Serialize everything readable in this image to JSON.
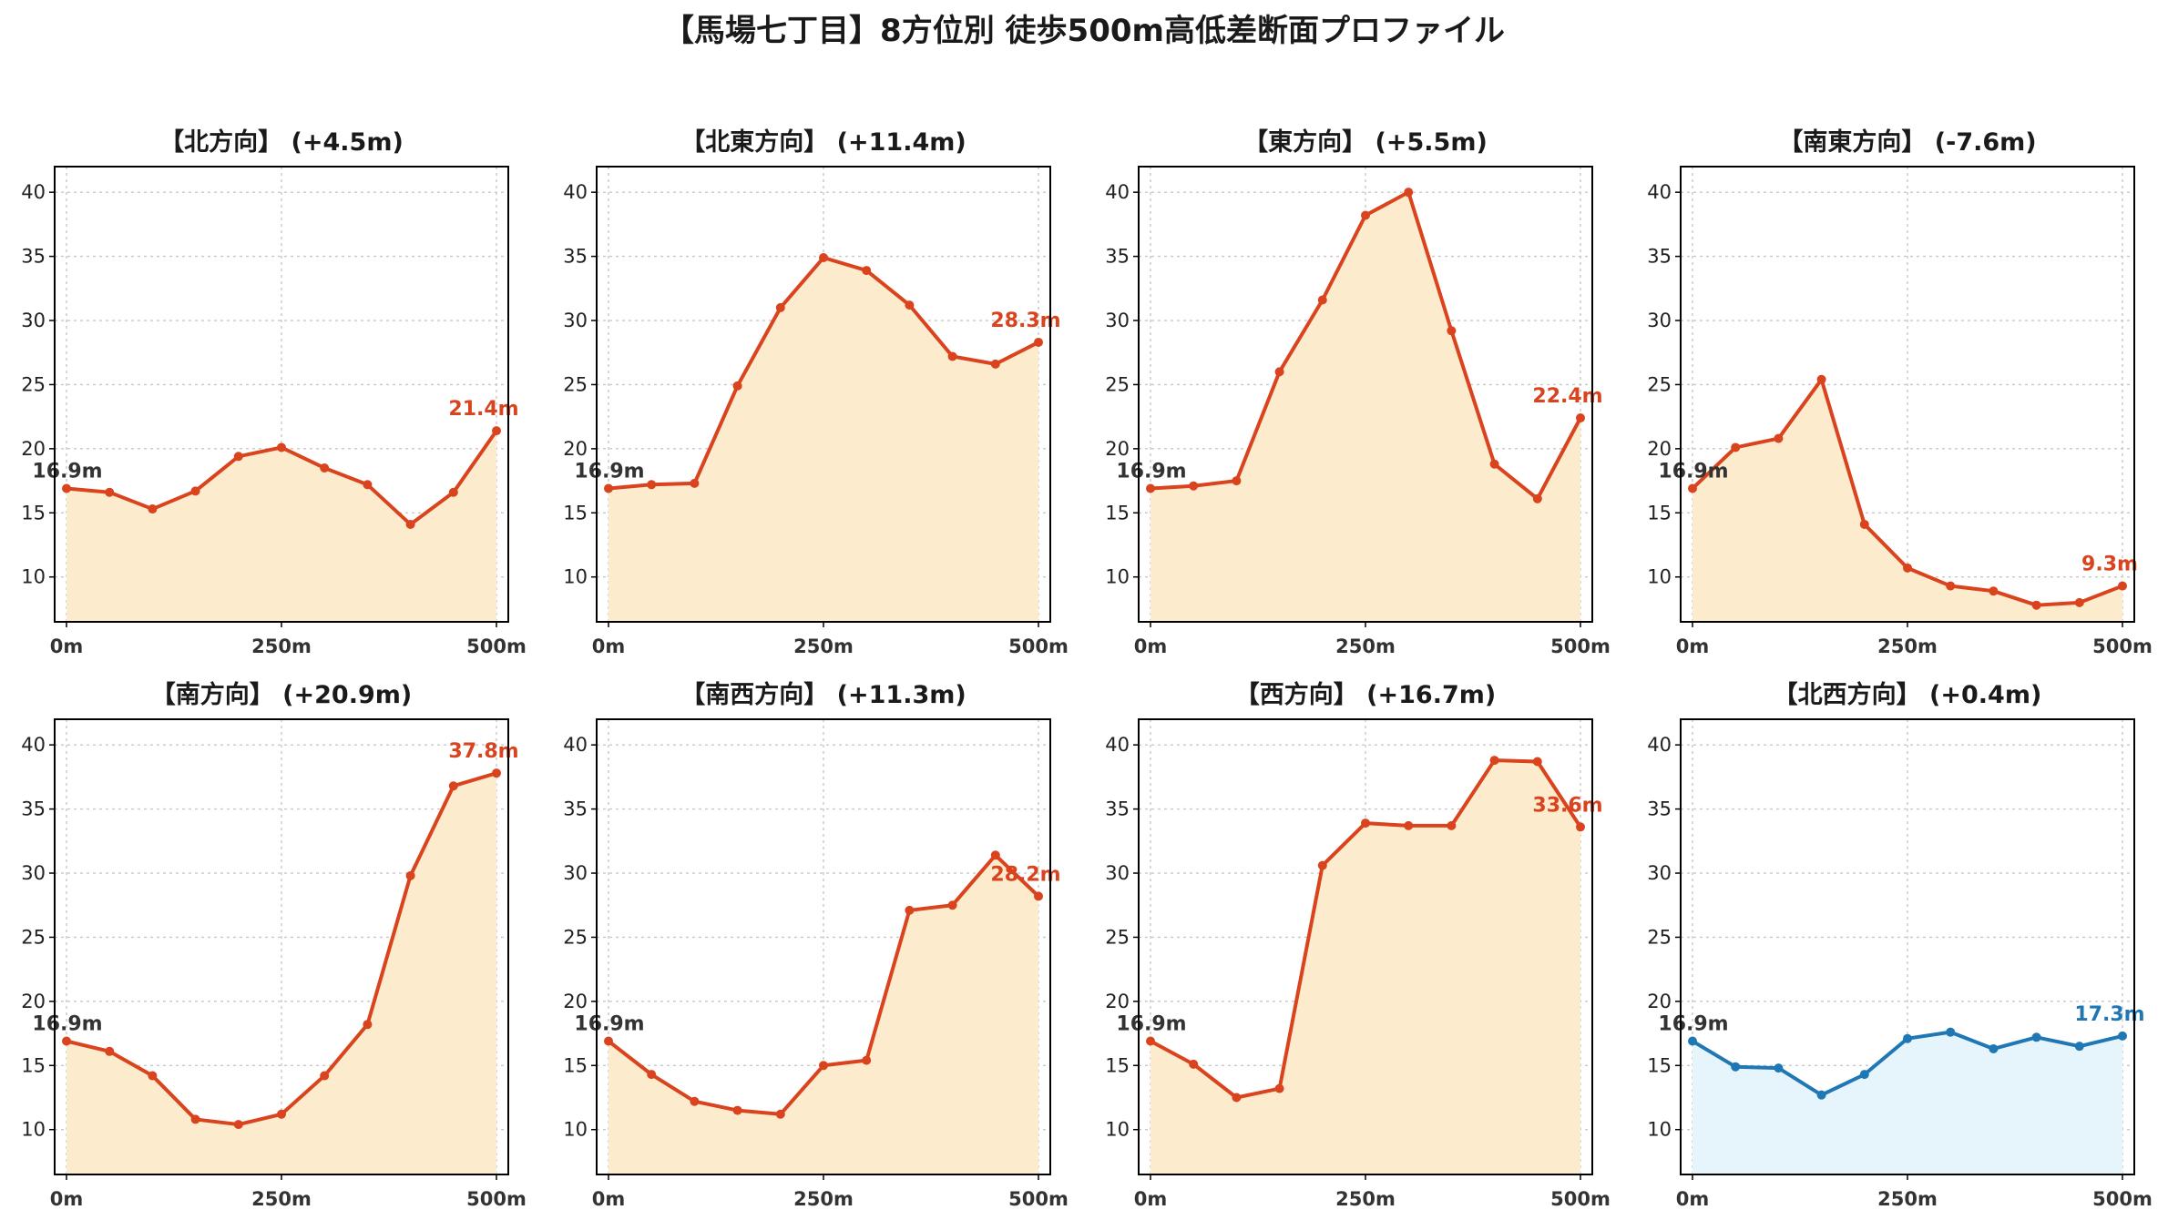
{
  "suptitle": "【馬場七丁目】8方位別 徒歩500m高低差断面プロファイル",
  "colors": {
    "up_line": "#d9431e",
    "up_fill": "#fdebcd",
    "flat_line": "#1f77b4",
    "flat_fill": "#e6f4fc",
    "start_label": "#333333"
  },
  "chart_data": [
    {
      "type": "area",
      "title": "【北方向】 (+4.5m)",
      "color": "up",
      "xlabel": "",
      "ylabel": "",
      "x": [
        0,
        50,
        100,
        150,
        200,
        250,
        300,
        350,
        400,
        450,
        500
      ],
      "x_ticks": [
        "0m",
        "250m",
        "500m"
      ],
      "y_ticks": [
        10,
        15,
        20,
        25,
        30,
        35,
        40
      ],
      "ylim": [
        6.5,
        42
      ],
      "grid": true,
      "values": [
        16.9,
        16.6,
        15.3,
        16.7,
        19.4,
        20.1,
        18.5,
        17.2,
        14.1,
        16.6,
        21.4
      ],
      "start_label": "16.9m",
      "end_label": "21.4m"
    },
    {
      "type": "area",
      "title": "【北東方向】 (+11.4m)",
      "color": "up",
      "xlabel": "",
      "ylabel": "",
      "x": [
        0,
        50,
        100,
        150,
        200,
        250,
        300,
        350,
        400,
        450,
        500
      ],
      "x_ticks": [
        "0m",
        "250m",
        "500m"
      ],
      "y_ticks": [
        10,
        15,
        20,
        25,
        30,
        35,
        40
      ],
      "ylim": [
        6.5,
        42
      ],
      "grid": true,
      "values": [
        16.9,
        17.2,
        17.3,
        24.9,
        31.0,
        34.9,
        33.9,
        31.2,
        27.2,
        26.6,
        28.3
      ],
      "start_label": "16.9m",
      "end_label": "28.3m"
    },
    {
      "type": "area",
      "title": "【東方向】 (+5.5m)",
      "color": "up",
      "xlabel": "",
      "ylabel": "",
      "x": [
        0,
        50,
        100,
        150,
        200,
        250,
        300,
        350,
        400,
        450,
        500
      ],
      "x_ticks": [
        "0m",
        "250m",
        "500m"
      ],
      "y_ticks": [
        10,
        15,
        20,
        25,
        30,
        35,
        40
      ],
      "ylim": [
        6.5,
        42
      ],
      "grid": true,
      "values": [
        16.9,
        17.1,
        17.5,
        26.0,
        31.6,
        38.2,
        40.0,
        29.2,
        18.8,
        16.1,
        22.4
      ],
      "start_label": "16.9m",
      "end_label": "22.4m"
    },
    {
      "type": "area",
      "title": "【南東方向】 (-7.6m)",
      "color": "up",
      "xlabel": "",
      "ylabel": "",
      "x": [
        0,
        50,
        100,
        150,
        200,
        250,
        300,
        350,
        400,
        450,
        500
      ],
      "x_ticks": [
        "0m",
        "250m",
        "500m"
      ],
      "y_ticks": [
        10,
        15,
        20,
        25,
        30,
        35,
        40
      ],
      "ylim": [
        6.5,
        42
      ],
      "grid": true,
      "values": [
        16.9,
        20.1,
        20.8,
        25.4,
        14.1,
        10.7,
        9.3,
        8.9,
        7.8,
        8.0,
        9.3
      ],
      "start_label": "16.9m",
      "end_label": "9.3m"
    },
    {
      "type": "area",
      "title": "【南方向】 (+20.9m)",
      "color": "up",
      "xlabel": "",
      "ylabel": "",
      "x": [
        0,
        50,
        100,
        150,
        200,
        250,
        300,
        350,
        400,
        450,
        500
      ],
      "x_ticks": [
        "0m",
        "250m",
        "500m"
      ],
      "y_ticks": [
        10,
        15,
        20,
        25,
        30,
        35,
        40
      ],
      "ylim": [
        6.5,
        42
      ],
      "grid": true,
      "values": [
        16.9,
        16.1,
        14.2,
        10.8,
        10.4,
        11.2,
        14.2,
        18.2,
        29.8,
        36.8,
        37.8
      ],
      "start_label": "16.9m",
      "end_label": "37.8m"
    },
    {
      "type": "area",
      "title": "【南西方向】 (+11.3m)",
      "color": "up",
      "xlabel": "",
      "ylabel": "",
      "x": [
        0,
        50,
        100,
        150,
        200,
        250,
        300,
        350,
        400,
        450,
        500
      ],
      "x_ticks": [
        "0m",
        "250m",
        "500m"
      ],
      "y_ticks": [
        10,
        15,
        20,
        25,
        30,
        35,
        40
      ],
      "ylim": [
        6.5,
        42
      ],
      "grid": true,
      "values": [
        16.9,
        14.3,
        12.2,
        11.5,
        11.2,
        15.0,
        15.4,
        27.1,
        27.5,
        31.4,
        28.2
      ],
      "start_label": "16.9m",
      "end_label": "28.2m"
    },
    {
      "type": "area",
      "title": "【西方向】 (+16.7m)",
      "color": "up",
      "xlabel": "",
      "ylabel": "",
      "x": [
        0,
        50,
        100,
        150,
        200,
        250,
        300,
        350,
        400,
        450,
        500
      ],
      "x_ticks": [
        "0m",
        "250m",
        "500m"
      ],
      "y_ticks": [
        10,
        15,
        20,
        25,
        30,
        35,
        40
      ],
      "ylim": [
        6.5,
        42
      ],
      "grid": true,
      "values": [
        16.9,
        15.1,
        12.5,
        13.2,
        30.6,
        33.9,
        33.7,
        33.7,
        38.8,
        38.7,
        33.6
      ],
      "start_label": "16.9m",
      "end_label": "33.6m"
    },
    {
      "type": "area",
      "title": "【北西方向】 (+0.4m)",
      "color": "flat",
      "xlabel": "",
      "ylabel": "",
      "x": [
        0,
        50,
        100,
        150,
        200,
        250,
        300,
        350,
        400,
        450,
        500
      ],
      "x_ticks": [
        "0m",
        "250m",
        "500m"
      ],
      "y_ticks": [
        10,
        15,
        20,
        25,
        30,
        35,
        40
      ],
      "ylim": [
        6.5,
        42
      ],
      "grid": true,
      "values": [
        16.9,
        14.9,
        14.8,
        12.7,
        14.3,
        17.1,
        17.6,
        16.3,
        17.2,
        16.5,
        17.3
      ],
      "start_label": "16.9m",
      "end_label": "17.3m"
    }
  ]
}
